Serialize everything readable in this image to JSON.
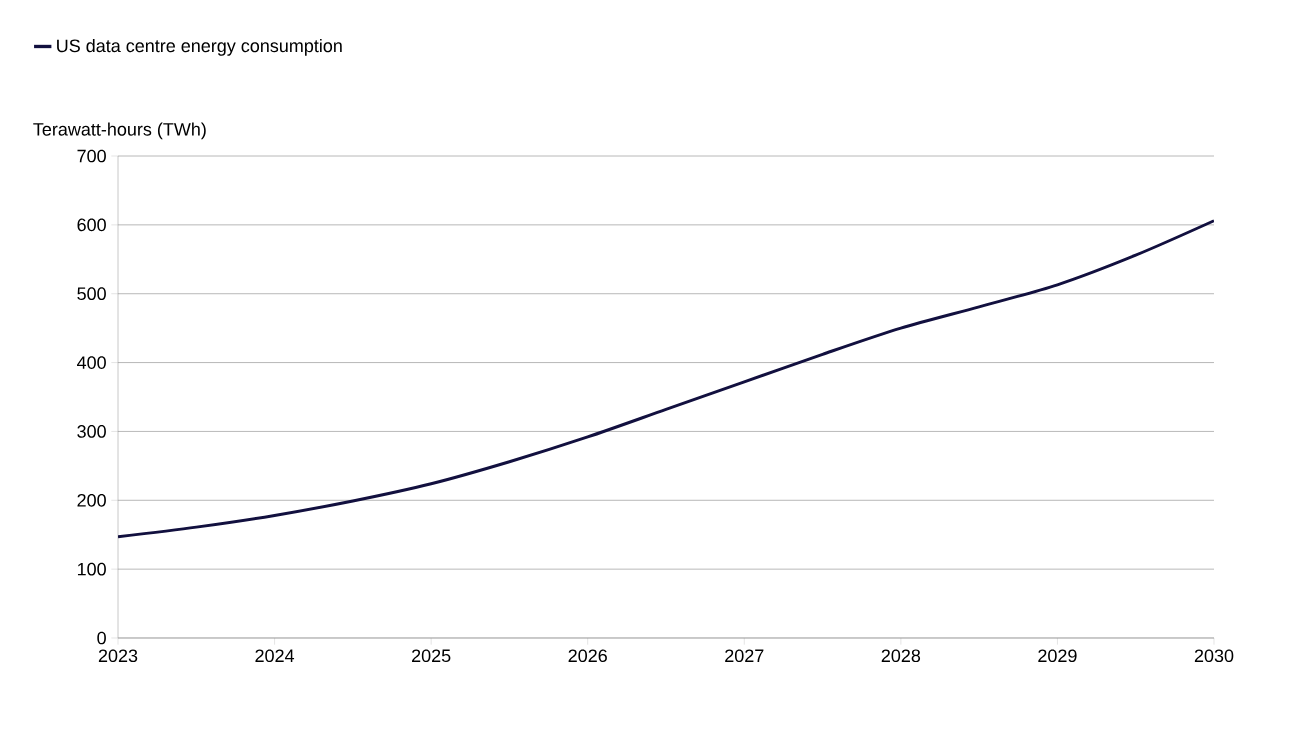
{
  "chart_data": {
    "type": "line",
    "ylabel": "Terawatt-hours (TWh)",
    "x": [
      2023,
      2023.5,
      2024,
      2024.5,
      2025,
      2025.5,
      2026,
      2026.5,
      2027,
      2027.5,
      2028,
      2028.5,
      2029,
      2029.5,
      2030
    ],
    "series": [
      {
        "name": "US data centre energy consumption",
        "color": "#12103f",
        "values": [
          147,
          161,
          178,
          199,
          224,
          256,
          292,
          332,
          372,
          412,
          450,
          481,
          513,
          556,
          606
        ]
      }
    ],
    "xlim": [
      2023,
      2030
    ],
    "xticks": [
      2023,
      2024,
      2025,
      2026,
      2027,
      2028,
      2029,
      2030
    ],
    "ylim": [
      0,
      700
    ],
    "yticks": [
      0,
      100,
      200,
      300,
      400,
      500,
      600,
      700
    ],
    "grid": "y",
    "legend": "top left"
  }
}
